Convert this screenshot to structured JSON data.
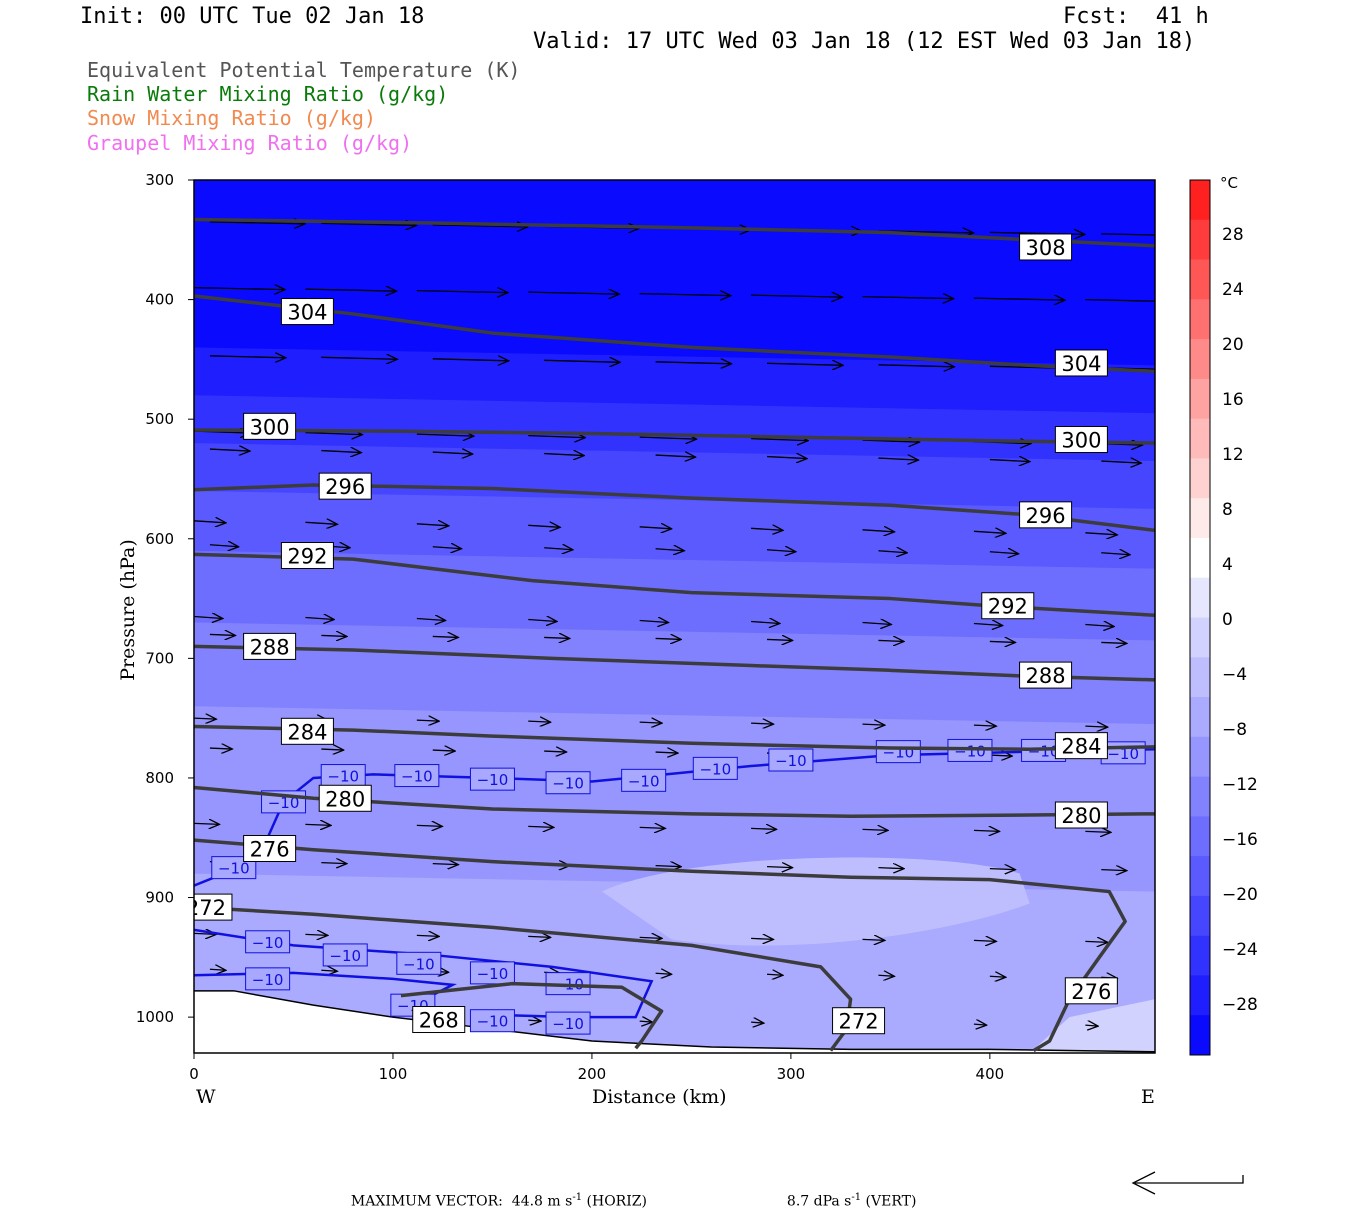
{
  "header": {
    "init": "Init: 00 UTC Tue 02 Jan 18",
    "fcst": "Fcst:  41 h",
    "valid": "Valid: 17 UTC Wed 03 Jan 18 (12 EST Wed 03 Jan 18)"
  },
  "legend": [
    {
      "text": "Equivalent Potential Temperature (K)",
      "color": "#555555"
    },
    {
      "text": "Rain Water Mixing Ratio (g/kg)",
      "color": "#0a7a0a"
    },
    {
      "text": "Snow Mixing Ratio (g/kg)",
      "color": "#f08a50"
    },
    {
      "text": "Graupel Mixing Ratio (g/kg)",
      "color": "#f070f0"
    }
  ],
  "axes": {
    "ylabel": "Pressure (hPa)",
    "xlabel": "Distance (km)",
    "west": "W",
    "east": "E"
  },
  "footer": {
    "max_vector": "MAXIMUM VECTOR:  44.8 m s",
    "horiz": " (HORIZ)",
    "vert_val": "8.7 dPa s",
    "vert": " (VERT)",
    "exp": "-1"
  },
  "colorbar": {
    "unit": "°C",
    "labels": [
      "28",
      "24",
      "20",
      "16",
      "12",
      "8",
      "4",
      "0",
      "−4",
      "−8",
      "−12",
      "−16",
      "−20",
      "−24",
      "−28"
    ],
    "colors": [
      "#ff2020",
      "#ff3c3c",
      "#ff5656",
      "#ff7070",
      "#ff8a8a",
      "#ffa2a2",
      "#ffbaba",
      "#ffd2d2",
      "#ffeaea",
      "#ffffff",
      "#e6e6fe",
      "#d2d2fe",
      "#bebefe",
      "#aaaafe",
      "#9696fe",
      "#8282fe",
      "#6e6efe",
      "#5a5afe",
      "#4646fe",
      "#3232fe",
      "#1e1efe",
      "#0a0afe"
    ]
  },
  "chart_data": {
    "type": "cross-section",
    "x": {
      "label": "Distance (km)",
      "range": [
        0,
        483
      ],
      "ticks": [
        0,
        100,
        200,
        300,
        400
      ]
    },
    "y": {
      "label": "Pressure (hPa)",
      "range": [
        1030,
        300
      ],
      "ticks": [
        300,
        400,
        500,
        600,
        700,
        800,
        900,
        1000
      ]
    },
    "fill": {
      "quantity": "Temperature",
      "unit": "°C",
      "interval": 4
    },
    "theta_e_contours": [
      {
        "value": 308,
        "label": "308",
        "points": [
          [
            0,
            333
          ],
          [
            120,
            336
          ],
          [
            250,
            340
          ],
          [
            350,
            344
          ],
          [
            420,
            350
          ],
          [
            483,
            355
          ]
        ]
      },
      {
        "value": 304,
        "label": "304",
        "points": [
          [
            0,
            397
          ],
          [
            80,
            412
          ],
          [
            150,
            428
          ],
          [
            250,
            440
          ],
          [
            350,
            448
          ],
          [
            420,
            455
          ],
          [
            483,
            460
          ]
        ]
      },
      {
        "value": 300,
        "label": "300",
        "points": [
          [
            0,
            509
          ],
          [
            100,
            510
          ],
          [
            200,
            512
          ],
          [
            300,
            515
          ],
          [
            400,
            518
          ],
          [
            483,
            520
          ]
        ]
      },
      {
        "value": 296,
        "label": "296",
        "points": [
          [
            0,
            559
          ],
          [
            60,
            555
          ],
          [
            150,
            558
          ],
          [
            250,
            566
          ],
          [
            350,
            572
          ],
          [
            420,
            580
          ],
          [
            483,
            593
          ]
        ]
      },
      {
        "value": 292,
        "label": "292",
        "points": [
          [
            0,
            613
          ],
          [
            80,
            617
          ],
          [
            170,
            635
          ],
          [
            250,
            645
          ],
          [
            350,
            650
          ],
          [
            400,
            656
          ],
          [
            483,
            664
          ]
        ]
      },
      {
        "value": 288,
        "label": "288",
        "points": [
          [
            0,
            690
          ],
          [
            80,
            693
          ],
          [
            180,
            700
          ],
          [
            280,
            706
          ],
          [
            350,
            710
          ],
          [
            420,
            715
          ],
          [
            483,
            718
          ]
        ]
      },
      {
        "value": 284,
        "label": "284",
        "points": [
          [
            0,
            757
          ],
          [
            80,
            760
          ],
          [
            150,
            765
          ],
          [
            250,
            771
          ],
          [
            350,
            775
          ],
          [
            420,
            776
          ],
          [
            483,
            774
          ]
        ]
      },
      {
        "value": 280,
        "label": "280",
        "points": [
          [
            0,
            808
          ],
          [
            60,
            817
          ],
          [
            150,
            826
          ],
          [
            250,
            830
          ],
          [
            330,
            832
          ],
          [
            420,
            831
          ],
          [
            483,
            830
          ]
        ]
      },
      {
        "value": 276,
        "label": "276",
        "points": [
          [
            0,
            852
          ],
          [
            60,
            860
          ],
          [
            150,
            870
          ],
          [
            250,
            878
          ],
          [
            330,
            883
          ],
          [
            400,
            885
          ],
          [
            460,
            895
          ],
          [
            468,
            920
          ],
          [
            455,
            950
          ],
          [
            440,
            985
          ],
          [
            430,
            1020
          ],
          [
            422,
            1028
          ]
        ]
      },
      {
        "value": 272,
        "label": "272",
        "points": [
          [
            0,
            908
          ],
          [
            60,
            914
          ],
          [
            150,
            925
          ],
          [
            250,
            940
          ],
          [
            315,
            958
          ],
          [
            330,
            985
          ],
          [
            328,
            1010
          ],
          [
            320,
            1028
          ]
        ]
      },
      {
        "value": 268,
        "label": "268",
        "points": [
          [
            104,
            982
          ],
          [
            160,
            972
          ],
          [
            215,
            975
          ],
          [
            235,
            995
          ],
          [
            225,
            1020
          ],
          [
            222,
            1026
          ]
        ]
      }
    ],
    "isotherms_minus10": [
      {
        "label": "−10",
        "points": [
          [
            0,
            890
          ],
          [
            30,
            870
          ],
          [
            37,
            850
          ],
          [
            45,
            820
          ],
          [
            60,
            800
          ],
          [
            90,
            797
          ],
          [
            150,
            800
          ],
          [
            200,
            803
          ],
          [
            280,
            790
          ],
          [
            350,
            781
          ],
          [
            420,
            778
          ],
          [
            483,
            776
          ]
        ]
      },
      {
        "label": "−10",
        "points": [
          [
            0,
            927
          ],
          [
            50,
            940
          ],
          [
            120,
            948
          ],
          [
            180,
            958
          ],
          [
            230,
            970
          ],
          [
            222,
            1000
          ],
          [
            190,
            1000
          ],
          [
            150,
            998
          ]
        ]
      },
      {
        "label": "−10",
        "points": [
          [
            0,
            965
          ],
          [
            50,
            963
          ],
          [
            100,
            968
          ],
          [
            130,
            973
          ],
          [
            110,
            990
          ],
          [
            100,
            995
          ]
        ]
      }
    ],
    "terrain_hpa": [
      [
        0,
        978
      ],
      [
        20,
        978
      ],
      [
        60,
        990
      ],
      [
        100,
        1000
      ],
      [
        140,
        1008
      ],
      [
        200,
        1020
      ],
      [
        260,
        1025
      ],
      [
        330,
        1027
      ],
      [
        400,
        1027
      ],
      [
        483,
        1029
      ]
    ],
    "max_vector": {
      "horiz_m_s": 44.8,
      "vert_dPa_s": 8.7
    }
  }
}
